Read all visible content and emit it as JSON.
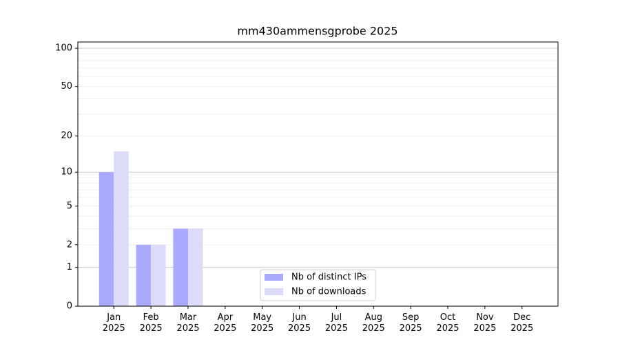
{
  "chart_data": {
    "type": "bar",
    "title": "mm430ammensgprobe 2025",
    "categories": [
      "Jan 2025",
      "Feb 2025",
      "Mar 2025",
      "Apr 2025",
      "May 2025",
      "Jun 2025",
      "Jul 2025",
      "Aug 2025",
      "Sep 2025",
      "Oct 2025",
      "Nov 2025",
      "Dec 2025"
    ],
    "series": [
      {
        "name": "Nb of distinct IPs",
        "color": "#aaaaff",
        "values": [
          10,
          2,
          3,
          0,
          0,
          0,
          0,
          0,
          0,
          0,
          0,
          0
        ]
      },
      {
        "name": "Nb of downloads",
        "color": "#dcdcfa",
        "values": [
          15,
          2,
          3,
          0,
          0,
          0,
          0,
          0,
          0,
          0,
          0,
          0
        ]
      }
    ],
    "y_scale": "log1p",
    "ylim": [
      0,
      112
    ],
    "yticks": [
      0,
      1,
      2,
      5,
      10,
      20,
      50,
      100
    ],
    "major_grid": [
      1,
      10,
      100
    ],
    "minor_grid": [
      2,
      3,
      4,
      5,
      6,
      7,
      8,
      9,
      20,
      30,
      40,
      50,
      60,
      70,
      80,
      90
    ],
    "legend": "lower center"
  }
}
